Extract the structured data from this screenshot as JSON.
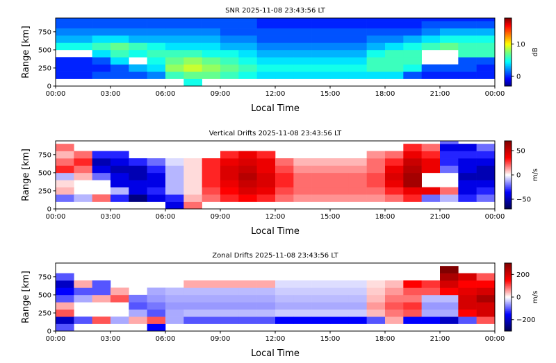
{
  "chart_data": [
    {
      "type": "heatmap",
      "title": "SNR 2025-11-08 23:43:56 LT",
      "xlabel": "Local Time",
      "ylabel": "Range [km]",
      "xticks": [
        "00:00",
        "03:00",
        "06:00",
        "09:00",
        "12:00",
        "15:00",
        "18:00",
        "21:00",
        "00:00"
      ],
      "xlim_hours": [
        0,
        24
      ],
      "yticks": [
        0,
        250,
        500,
        750
      ],
      "ylim": [
        0,
        940
      ],
      "colormap": "jet",
      "colorbar": {
        "label": "dB",
        "ticks": [
          0,
          10
        ],
        "range": [
          -3,
          18
        ]
      },
      "x_hours": [
        0,
        1,
        2,
        3,
        4,
        5,
        6,
        7,
        8,
        9,
        10,
        11,
        12,
        13,
        14,
        15,
        16,
        17,
        18,
        19,
        20,
        21,
        22,
        23
      ],
      "range_bins_km": [
        0,
        100,
        200,
        300,
        400,
        500,
        600,
        700,
        800,
        900
      ],
      "values": [
        [
          null,
          0,
          0,
          0,
          null,
          5,
          3,
          2,
          1,
          1
        ],
        [
          null,
          0,
          0,
          0,
          null,
          5,
          3,
          2,
          1,
          1
        ],
        [
          null,
          1,
          0,
          1,
          4,
          6,
          4,
          2,
          1,
          1
        ],
        [
          null,
          1,
          1,
          4,
          6,
          7,
          4,
          2,
          1,
          1
        ],
        [
          null,
          1,
          3,
          null,
          5,
          6,
          3,
          2,
          1,
          1
        ],
        [
          null,
          2,
          4,
          5,
          6,
          5,
          3,
          2,
          1,
          1
        ],
        [
          null,
          6,
          8,
          7,
          6,
          4,
          3,
          2,
          1,
          1
        ],
        [
          5,
          7,
          9,
          8,
          6,
          4,
          3,
          2,
          1,
          1
        ],
        [
          null,
          7,
          8,
          7,
          5,
          4,
          3,
          2,
          1,
          1
        ],
        [
          null,
          6,
          7,
          6,
          5,
          3,
          2,
          1,
          1,
          1
        ],
        [
          null,
          5,
          6,
          5,
          4,
          3,
          2,
          1,
          1,
          1
        ],
        [
          null,
          4,
          5,
          4,
          3,
          2,
          1,
          1,
          0,
          0
        ],
        [
          null,
          4,
          5,
          4,
          3,
          2,
          1,
          1,
          0,
          0
        ],
        [
          null,
          4,
          5,
          4,
          3,
          2,
          1,
          1,
          0,
          0
        ],
        [
          null,
          4,
          5,
          4,
          3,
          2,
          1,
          1,
          0,
          0
        ],
        [
          null,
          4,
          5,
          4,
          3,
          2,
          1,
          1,
          0,
          0
        ],
        [
          null,
          4,
          5,
          4,
          3,
          2,
          1,
          1,
          0,
          0
        ],
        [
          null,
          4,
          6,
          6,
          5,
          3,
          2,
          1,
          0,
          0
        ],
        [
          null,
          4,
          6,
          6,
          6,
          4,
          2,
          1,
          0,
          0
        ],
        [
          null,
          1,
          5,
          6,
          6,
          5,
          3,
          1,
          0,
          0
        ],
        [
          null,
          0,
          1,
          null,
          null,
          6,
          4,
          2,
          1,
          0
        ],
        [
          null,
          0,
          1,
          null,
          null,
          7,
          5,
          3,
          1,
          0
        ],
        [
          null,
          0,
          1,
          1,
          6,
          6,
          5,
          3,
          1,
          0
        ],
        [
          null,
          0,
          0,
          1,
          6,
          6,
          5,
          3,
          1,
          0
        ]
      ]
    },
    {
      "type": "heatmap",
      "title": "Vertical Drifts 2025-11-08 23:43:56 LT",
      "xlabel": "Local Time",
      "ylabel": "Range [km]",
      "xticks": [
        "00:00",
        "03:00",
        "06:00",
        "09:00",
        "12:00",
        "15:00",
        "18:00",
        "21:00",
        "00:00"
      ],
      "xlim_hours": [
        0,
        24
      ],
      "yticks": [
        0,
        250,
        500,
        750
      ],
      "ylim": [
        0,
        940
      ],
      "colormap": "seismic",
      "colorbar": {
        "label": "m/s",
        "ticks": [
          -50,
          0,
          50
        ],
        "range": [
          -70,
          70
        ]
      },
      "x_hours": [
        0,
        1,
        2,
        3,
        4,
        5,
        6,
        7,
        8,
        9,
        10,
        11,
        12,
        13,
        14,
        15,
        16,
        17,
        18,
        19,
        20,
        21,
        22,
        23
      ],
      "range_bins_km": [
        0,
        100,
        200,
        300,
        400,
        500,
        600,
        700,
        800,
        900
      ],
      "values": [
        [
          null,
          -20,
          10,
          5,
          -10,
          30,
          20,
          10,
          20,
          null
        ],
        [
          null,
          -10,
          null,
          null,
          10,
          20,
          30,
          20,
          null,
          null
        ],
        [
          null,
          20,
          null,
          null,
          -20,
          -40,
          -50,
          -30,
          null,
          null
        ],
        [
          null,
          -30,
          -10,
          -40,
          -40,
          -50,
          -40,
          -30,
          null,
          null
        ],
        [
          null,
          -60,
          -40,
          -40,
          -50,
          -50,
          -30,
          null,
          null,
          null
        ],
        [
          null,
          -40,
          -30,
          -40,
          -40,
          -30,
          -20,
          null,
          null,
          null
        ],
        [
          -40,
          -30,
          -10,
          -10,
          -10,
          -10,
          -5,
          null,
          null,
          null
        ],
        [
          20,
          10,
          5,
          5,
          5,
          5,
          5,
          null,
          null,
          null
        ],
        [
          null,
          20,
          25,
          30,
          30,
          30,
          30,
          null,
          null,
          null
        ],
        [
          null,
          30,
          35,
          40,
          45,
          45,
          40,
          30,
          null,
          null
        ],
        [
          null,
          35,
          45,
          50,
          55,
          50,
          45,
          40,
          null,
          null
        ],
        [
          null,
          30,
          40,
          45,
          45,
          40,
          40,
          30,
          null,
          null
        ],
        [
          null,
          20,
          25,
          30,
          30,
          25,
          20,
          null,
          null,
          null
        ],
        [
          null,
          15,
          20,
          20,
          20,
          15,
          10,
          null,
          null,
          null
        ],
        [
          null,
          15,
          20,
          20,
          20,
          15,
          10,
          null,
          null,
          null
        ],
        [
          null,
          15,
          20,
          20,
          20,
          15,
          10,
          null,
          null,
          null
        ],
        [
          null,
          15,
          20,
          20,
          20,
          15,
          10,
          null,
          null,
          null
        ],
        [
          null,
          15,
          20,
          25,
          25,
          20,
          20,
          15,
          null,
          null
        ],
        [
          null,
          20,
          30,
          40,
          45,
          40,
          30,
          20,
          null,
          null
        ],
        [
          null,
          30,
          40,
          60,
          60,
          55,
          50,
          40,
          30,
          null
        ],
        [
          null,
          -20,
          40,
          null,
          null,
          40,
          40,
          30,
          20,
          null
        ],
        [
          null,
          -10,
          20,
          null,
          null,
          -20,
          -30,
          -30,
          -40,
          -20
        ],
        [
          null,
          -30,
          -40,
          -40,
          -50,
          -40,
          -40,
          -30,
          -40,
          null
        ],
        [
          null,
          -20,
          -30,
          -40,
          -50,
          -50,
          -40,
          -30,
          -20,
          null
        ]
      ]
    },
    {
      "type": "heatmap",
      "title": "Zonal Drifts 2025-11-08 23:43:56 LT",
      "xlabel": "Local Time",
      "ylabel": "Range [km]",
      "xticks": [
        "00:00",
        "03:00",
        "06:00",
        "09:00",
        "12:00",
        "15:00",
        "18:00",
        "21:00",
        "00:00"
      ],
      "xlim_hours": [
        0,
        24
      ],
      "yticks": [
        0,
        250,
        500,
        750
      ],
      "ylim": [
        0,
        940
      ],
      "colormap": "seismic",
      "colorbar": {
        "label": "m/s",
        "ticks": [
          -200,
          0,
          200
        ],
        "range": [
          -300,
          300
        ]
      },
      "x_hours": [
        0,
        1,
        2,
        3,
        4,
        5,
        6,
        7,
        8,
        9,
        10,
        11,
        12,
        13,
        14,
        15,
        16,
        17,
        18,
        19,
        20,
        21,
        22,
        23
      ],
      "range_bins_km": [
        0,
        100,
        200,
        300,
        400,
        500,
        600,
        700,
        800,
        900
      ],
      "values": [
        [
          -100,
          -200,
          100,
          50,
          -100,
          -150,
          -200,
          -100,
          null,
          null
        ],
        [
          null,
          -100,
          null,
          null,
          -50,
          -100,
          50,
          null,
          null,
          null
        ],
        [
          null,
          100,
          null,
          null,
          50,
          -100,
          -100,
          null,
          null,
          null
        ],
        [
          null,
          -50,
          null,
          null,
          100,
          50,
          null,
          null,
          null,
          null
        ],
        [
          null,
          50,
          -50,
          -100,
          -80,
          null,
          null,
          null,
          null,
          null
        ],
        [
          -150,
          100,
          -100,
          -80,
          -60,
          -50,
          null,
          null,
          null,
          null
        ],
        [
          null,
          -50,
          -50,
          -60,
          -50,
          -40,
          null,
          null,
          null,
          null
        ],
        [
          null,
          -100,
          -40,
          -60,
          -50,
          -40,
          50,
          null,
          null,
          null
        ],
        [
          null,
          -100,
          -40,
          -60,
          -50,
          -40,
          50,
          null,
          null,
          null
        ],
        [
          null,
          -100,
          -40,
          -60,
          -50,
          -40,
          50,
          null,
          null,
          null
        ],
        [
          null,
          -100,
          -40,
          -60,
          -50,
          -40,
          50,
          null,
          null,
          null
        ],
        [
          null,
          -100,
          -40,
          -60,
          -50,
          -40,
          50,
          null,
          null,
          null
        ],
        [
          null,
          -150,
          -30,
          -50,
          -40,
          -30,
          -20,
          null,
          null,
          null
        ],
        [
          null,
          -150,
          -30,
          -50,
          -40,
          -30,
          -20,
          null,
          null,
          null
        ],
        [
          null,
          -150,
          -30,
          -50,
          -40,
          -30,
          -20,
          null,
          null,
          null
        ],
        [
          null,
          -150,
          -30,
          -50,
          -40,
          -30,
          -20,
          null,
          null,
          null
        ],
        [
          null,
          -150,
          -30,
          -50,
          -40,
          -30,
          -20,
          null,
          null,
          null
        ],
        [
          null,
          -100,
          40,
          60,
          40,
          30,
          20,
          null,
          null,
          null
        ],
        [
          null,
          50,
          80,
          100,
          80,
          60,
          40,
          null,
          null,
          null
        ],
        [
          null,
          -150,
          100,
          120,
          80,
          100,
          150,
          null,
          null,
          null
        ],
        [
          null,
          -150,
          -50,
          -60,
          -40,
          100,
          120,
          null,
          null,
          null
        ],
        [
          null,
          -200,
          -50,
          -60,
          -40,
          150,
          200,
          250,
          300,
          null
        ],
        [
          null,
          -100,
          150,
          200,
          200,
          180,
          150,
          200,
          null,
          null
        ],
        [
          null,
          100,
          200,
          200,
          250,
          200,
          150,
          100,
          null,
          null
        ]
      ]
    }
  ]
}
